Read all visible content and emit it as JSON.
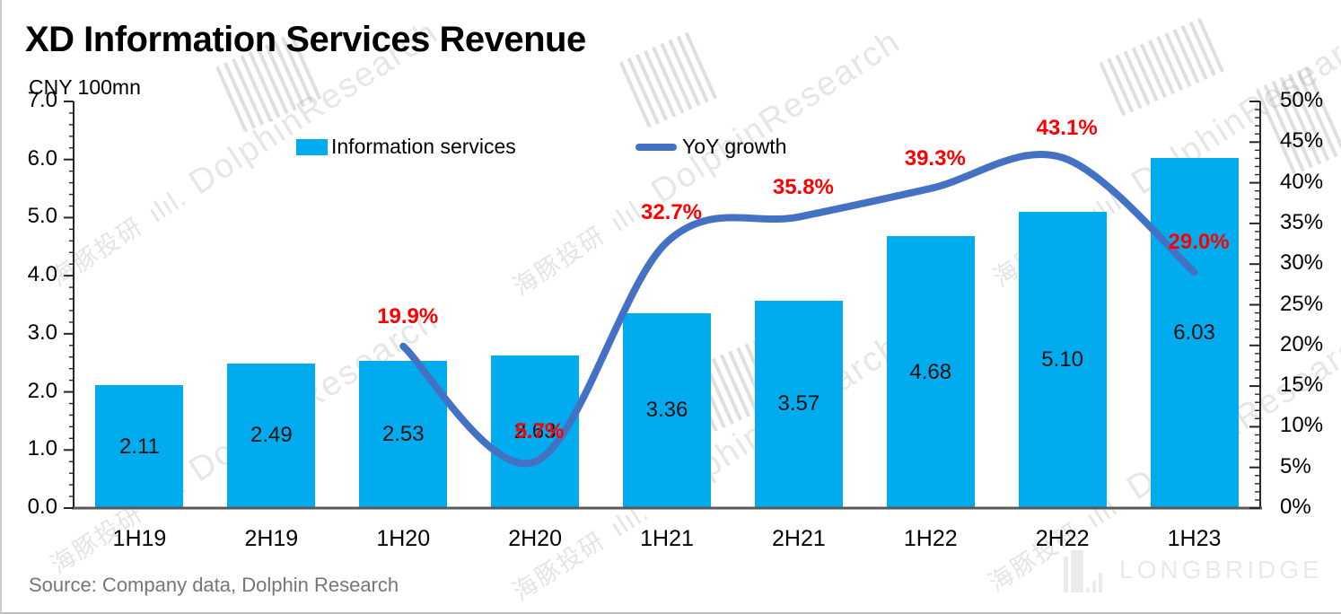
{
  "header": {
    "title": "XD Information Services Revenue",
    "axis_unit_label": "CNY 100mn"
  },
  "legend": {
    "items": [
      {
        "label": "Information services",
        "swatch": "bar"
      },
      {
        "label": "YoY growth",
        "swatch": "line"
      }
    ]
  },
  "chart_data": {
    "type": "bar+line combo",
    "title": "XD Information Services Revenue",
    "left_axis_unit": "CNY 100mn",
    "categories": [
      "1H19",
      "2H19",
      "1H20",
      "2H20",
      "1H21",
      "2H21",
      "1H22",
      "2H22",
      "1H23"
    ],
    "series": [
      {
        "name": "Information services",
        "type": "bar",
        "axis": "left",
        "color": "#00ACEE",
        "values": [
          2.11,
          2.49,
          2.53,
          2.63,
          3.36,
          3.57,
          4.68,
          5.1,
          6.03
        ],
        "labels": [
          "2.11",
          "2.49",
          "2.53",
          "2.63",
          "3.36",
          "3.57",
          "4.68",
          "5.10",
          "6.03"
        ],
        "label_color": "#111111"
      },
      {
        "name": "YoY growth",
        "type": "line",
        "axis": "right",
        "color": "#4471C4",
        "values": [
          null,
          null,
          19.9,
          5.7,
          32.7,
          35.8,
          39.3,
          43.1,
          29.0
        ],
        "labels": [
          null,
          null,
          "19.9%",
          "5.7%",
          "32.7%",
          "35.8%",
          "39.3%",
          "43.1%",
          "29.0%"
        ],
        "label_color": "#FF0000"
      }
    ],
    "left_axis": {
      "min": 0,
      "max": 7,
      "minor_step": 0.2,
      "tick_values": [
        7,
        6,
        5,
        4,
        3,
        2,
        1,
        0
      ],
      "tick_labels": [
        "7.0",
        "6.0",
        "5.0",
        "4.0",
        "3.0",
        "2.0",
        "1.0",
        "0.0"
      ]
    },
    "right_axis": {
      "min": 0,
      "max": 50,
      "minor_step": 1,
      "tick_values": [
        50,
        45,
        40,
        35,
        30,
        25,
        20,
        15,
        10,
        5,
        0
      ],
      "tick_labels": [
        "50%",
        "45%",
        "40%",
        "35%",
        "30%",
        "25%",
        "20%",
        "15%",
        "10%",
        "5%",
        "0%"
      ]
    },
    "grid": false,
    "legend_position": "top-center"
  },
  "footer": {
    "source": "Source: Company data, Dolphin Research"
  },
  "branding": {
    "longbridge": "LONGBRIDGE"
  },
  "watermark": {
    "cn": "海豚投研",
    "bars": "ılıl.",
    "en": "DolphinResearch"
  }
}
